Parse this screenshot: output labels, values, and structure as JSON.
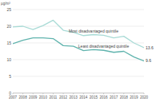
{
  "chart_data": {
    "type": "line",
    "y_label": "µg/m³",
    "x": [
      2007,
      2008,
      2009,
      2010,
      2011,
      2012,
      2013,
      2014,
      2015,
      2016,
      2017,
      2018,
      2019,
      2020
    ],
    "series": [
      {
        "name": "Most disadvantaged quintile",
        "color": "#a9dbd6",
        "values": [
          19.8,
          20.0,
          19.0,
          20.2,
          21.8,
          18.8,
          18.2,
          17.2,
          17.5,
          17.3,
          16.5,
          17.0,
          15.0,
          13.6
        ]
      },
      {
        "name": "Least disadvantaged quintile",
        "color": "#5fb3ad",
        "values": [
          14.8,
          15.8,
          16.5,
          16.5,
          16.3,
          14.2,
          14.0,
          12.7,
          13.0,
          12.8,
          12.2,
          12.5,
          10.8,
          9.6
        ]
      }
    ],
    "annotations": [
      "13.6",
      "9.6"
    ],
    "xlim": [
      2007,
      2020
    ],
    "xticks": [
      2007,
      2008,
      2009,
      2010,
      2011,
      2012,
      2013,
      2014,
      2015,
      2016,
      2017,
      2018,
      2019,
      2020
    ],
    "ylim": [
      0,
      25
    ],
    "yticks": [
      0,
      5,
      10,
      15,
      20,
      25
    ],
    "grid": true
  }
}
